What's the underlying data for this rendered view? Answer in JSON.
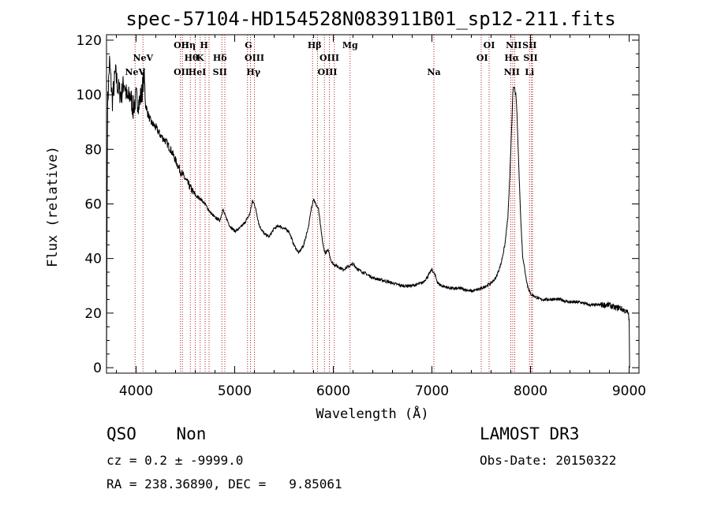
{
  "chart_data": {
    "type": "line",
    "title": "spec-57104-HD154528N083911B01_sp12-211.fits",
    "xlabel": "Wavelength (Å)",
    "ylabel": "Flux (relative)",
    "xlim": [
      3700,
      9100
    ],
    "ylim": [
      -2,
      122
    ],
    "xticks": [
      4000,
      5000,
      6000,
      7000,
      8000,
      9000
    ],
    "yticks": [
      0,
      20,
      40,
      60,
      80,
      100,
      120
    ],
    "series": [
      {
        "name": "spectrum",
        "x": [
          3700,
          3710,
          3730,
          3760,
          3790,
          3820,
          3850,
          3880,
          3910,
          3940,
          3970,
          4000,
          4030,
          4060,
          4080,
          4100,
          4120,
          4150,
          4200,
          4250,
          4300,
          4350,
          4400,
          4450,
          4500,
          4550,
          4600,
          4650,
          4700,
          4750,
          4800,
          4850,
          4880,
          4900,
          4950,
          5000,
          5050,
          5100,
          5150,
          5180,
          5200,
          5220,
          5250,
          5300,
          5350,
          5400,
          5450,
          5500,
          5550,
          5600,
          5650,
          5700,
          5750,
          5780,
          5800,
          5820,
          5850,
          5880,
          5900,
          5920,
          5950,
          5980,
          6000,
          6050,
          6100,
          6150,
          6200,
          6250,
          6300,
          6350,
          6400,
          6500,
          6600,
          6700,
          6800,
          6900,
          6950,
          7000,
          7030,
          7060,
          7100,
          7200,
          7300,
          7400,
          7500,
          7550,
          7600,
          7650,
          7700,
          7740,
          7770,
          7790,
          7810,
          7820,
          7830,
          7840,
          7850,
          7860,
          7880,
          7900,
          7920,
          7950,
          7970,
          8000,
          8050,
          8100,
          8200,
          8300,
          8400,
          8500,
          8600,
          8700,
          8800,
          8850,
          8900,
          8950,
          8990,
          9000,
          9005
        ],
        "values": [
          0,
          95,
          112,
          98,
          108,
          102,
          100,
          105,
          98,
          100,
          95,
          99,
          97,
          101,
          107,
          96,
          93,
          90,
          88,
          85,
          83,
          80,
          76,
          72,
          69,
          66,
          63,
          62,
          60,
          57,
          55,
          54,
          58,
          56,
          52,
          50,
          51,
          53,
          56,
          61,
          60,
          57,
          52,
          49,
          48,
          51,
          52,
          51,
          50,
          45,
          42,
          45,
          52,
          59,
          62,
          60,
          58,
          49,
          44,
          42,
          43,
          39,
          38,
          37,
          36,
          37,
          38,
          36,
          35,
          34,
          33,
          32,
          31,
          30,
          30,
          31,
          33,
          36,
          34,
          31,
          30,
          29,
          29,
          28,
          29,
          30,
          31,
          33,
          38,
          45,
          55,
          70,
          90,
          100,
          103,
          102,
          100,
          95,
          75,
          55,
          41,
          34,
          30,
          27,
          26,
          25,
          25,
          25,
          24,
          24,
          23,
          23,
          23,
          22,
          22,
          21,
          20,
          18,
          0
        ]
      }
    ],
    "emission_lines": [
      {
        "label": "NeV",
        "x": 3990,
        "row": 2
      },
      {
        "label": "NeV",
        "x": 4070,
        "row": 1
      },
      {
        "label": "OII",
        "x": 4460,
        "row": 0
      },
      {
        "label": "OII",
        "x": 4460,
        "row": 2
      },
      {
        "label": "Hη",
        "x": 4530,
        "row": 0
      },
      {
        "label": "Hθ",
        "x": 4560,
        "row": 1
      },
      {
        "label": "He",
        "x": 4600,
        "row": 2
      },
      {
        "label": "H",
        "x": 4690,
        "row": 0
      },
      {
        "label": "K",
        "x": 4650,
        "row": 1
      },
      {
        "label": "I",
        "x": 4690,
        "row": 2
      },
      {
        "label": "Hδ",
        "x": 4850,
        "row": 1
      },
      {
        "label": "SII",
        "x": 4850,
        "row": 2
      },
      {
        "label": "G",
        "x": 5140,
        "row": 0
      },
      {
        "label": "OIII",
        "x": 5200,
        "row": 1
      },
      {
        "label": "Hγ",
        "x": 5190,
        "row": 2
      },
      {
        "label": "Hβ",
        "x": 5810,
        "row": 0
      },
      {
        "label": "OIII",
        "x": 5960,
        "row": 1
      },
      {
        "label": "OIII",
        "x": 5940,
        "row": 2
      },
      {
        "label": "Mg",
        "x": 6170,
        "row": 0
      },
      {
        "label": "Na",
        "x": 7020,
        "row": 2
      },
      {
        "label": "OI",
        "x": 7580,
        "row": 0
      },
      {
        "label": "OI",
        "x": 7510,
        "row": 1
      },
      {
        "label": "NII",
        "x": 7830,
        "row": 0
      },
      {
        "label": "SII",
        "x": 7990,
        "row": 0
      },
      {
        "label": "Hα",
        "x": 7810,
        "row": 1
      },
      {
        "label": "SII",
        "x": 8000,
        "row": 1
      },
      {
        "label": "NII",
        "x": 7810,
        "row": 2
      },
      {
        "label": "Li",
        "x": 7990,
        "row": 2
      }
    ],
    "line_markers": [
      3990,
      4070,
      4450,
      4470,
      4550,
      4600,
      4650,
      4700,
      4740,
      4870,
      4900,
      5130,
      5160,
      5200,
      5790,
      5840,
      5910,
      5960,
      6010,
      6170,
      7020,
      7500,
      7580,
      7800,
      7820,
      7840,
      7990,
      8010,
      8020
    ]
  },
  "info": {
    "class": "QSO    Non",
    "survey": "LAMOST DR3",
    "cz": "cz = 0.2 ± -9999.0",
    "obs_date": "Obs-Date: 20150322",
    "coords": "RA = 238.36890, DEC =   9.85061"
  }
}
